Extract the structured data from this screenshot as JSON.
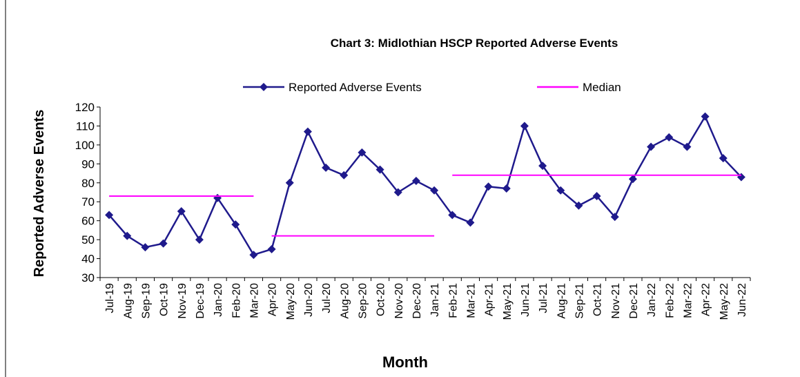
{
  "chart_data": {
    "type": "line",
    "title": "Chart 3: Midlothian  HSCP Reported Adverse Events",
    "y_label": "Reported Adverse Events",
    "x_label": "Month",
    "categories": [
      "Jul-19",
      "Aug-19",
      "Sep-19",
      "Oct-19",
      "Nov-19",
      "Dec-19",
      "Jan-20",
      "Feb-20",
      "Mar-20",
      "Apr-20",
      "May-20",
      "Jun-20",
      "Jul-20",
      "Aug-20",
      "Sep-20",
      "Oct-20",
      "Nov-20",
      "Dec-20",
      "Jan-21",
      "Feb-21",
      "Mar-21",
      "Apr-21",
      "May-21",
      "Jun-21",
      "Jul-21",
      "Aug-21",
      "Sep-21",
      "Oct-21",
      "Nov-21",
      "Dec-21",
      "Jan-22",
      "Feb-22",
      "Mar-22",
      "Apr-22",
      "May-22",
      "Jun-22"
    ],
    "series": [
      {
        "name": "Reported Adverse Events",
        "color": "#1f1a8c",
        "marker": "diamond",
        "values": [
          63,
          52,
          46,
          48,
          65,
          50,
          72,
          58,
          42,
          45,
          80,
          107,
          88,
          84,
          96,
          87,
          75,
          81,
          76,
          63,
          59,
          78,
          77,
          110,
          89,
          76,
          68,
          73,
          62,
          82,
          99,
          104,
          99,
          115,
          93,
          83
        ]
      },
      {
        "name": "Median",
        "color": "#ff00ff",
        "marker": "none",
        "values": [
          73,
          73,
          73,
          73,
          73,
          73,
          73,
          73,
          73,
          52,
          52,
          52,
          52,
          52,
          52,
          52,
          52,
          52,
          52,
          84,
          84,
          84,
          84,
          84,
          84,
          84,
          84,
          84,
          84,
          84,
          84,
          84,
          84,
          84,
          84,
          84
        ]
      }
    ],
    "ylim": [
      30,
      120
    ],
    "yticks": [
      30,
      40,
      50,
      60,
      70,
      80,
      90,
      100,
      110,
      120
    ],
    "grid": false,
    "legend": "top"
  }
}
